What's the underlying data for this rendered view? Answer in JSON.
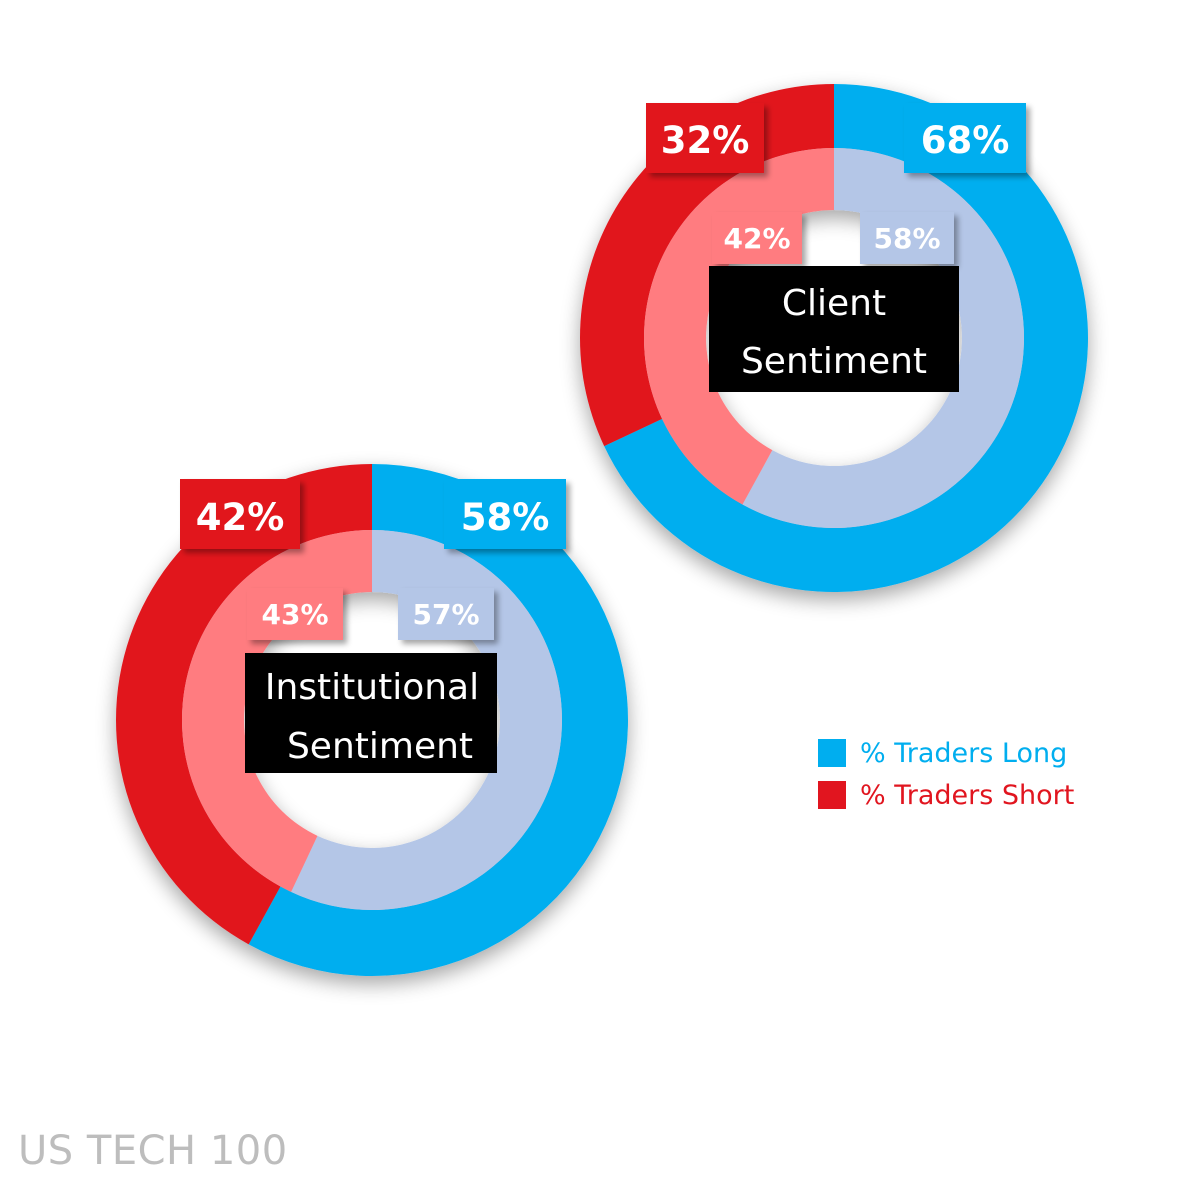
{
  "chart_data": [
    {
      "type": "pie",
      "title": "Client Sentiment",
      "series": [
        {
          "name": "% Traders Long",
          "values": [
            68
          ],
          "color": "#00aeef",
          "ring": "outer"
        },
        {
          "name": "% Traders Short",
          "values": [
            32
          ],
          "color": "#e1151f",
          "ring": "outer"
        }
      ],
      "inner": [
        {
          "value": 58,
          "color": "#b4c6e7",
          "label": "58%"
        },
        {
          "value": 42,
          "color": "#ff7c80",
          "label": "42%"
        }
      ],
      "labels": {
        "long": "68%",
        "short": "32%",
        "inner_long": "58%",
        "inner_short": "42%"
      }
    },
    {
      "type": "pie",
      "title": "Institutional Sentiment",
      "series": [
        {
          "name": "% Traders Long",
          "values": [
            58
          ],
          "color": "#00aeef",
          "ring": "outer"
        },
        {
          "name": "% Traders Short",
          "values": [
            42
          ],
          "color": "#e1151f",
          "ring": "outer"
        }
      ],
      "inner": [
        {
          "value": 57,
          "color": "#b4c6e7",
          "label": "57%"
        },
        {
          "value": 43,
          "color": "#ff7c80",
          "label": "43%"
        }
      ],
      "labels": {
        "long": "58%",
        "short": "42%",
        "inner_long": "57%",
        "inner_short": "43%"
      }
    }
  ],
  "client": {
    "title_line1": "Client",
    "title_line2": "Sentiment"
  },
  "institutional": {
    "title_line1": "Institutional",
    "title_line2": "Sentiment"
  },
  "legend": {
    "long_label": "% Traders Long",
    "short_label": "% Traders Short",
    "long_color": "#00aeef",
    "short_color": "#e1151f"
  },
  "footer": {
    "instrument": "US TECH 100"
  }
}
